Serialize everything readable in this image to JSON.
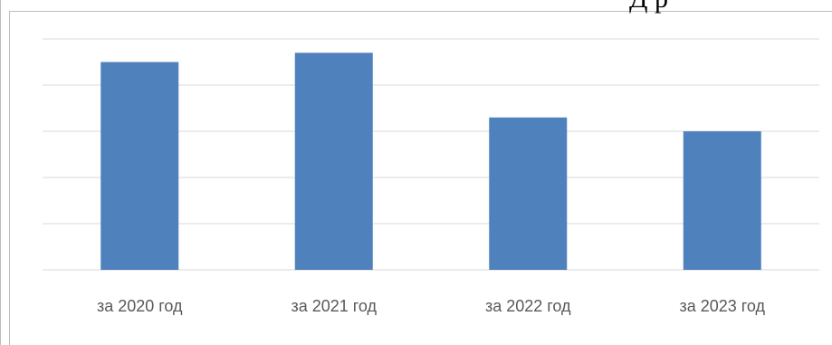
{
  "page": {
    "cropped_header_fragment": "Д р"
  },
  "chart_data": {
    "type": "bar",
    "categories": [
      "за 2020 год",
      "за 2021 год",
      "за 2022 год",
      "за 2023 год"
    ],
    "values": [
      4.5,
      4.7,
      3.3,
      3.0
    ],
    "title": "",
    "xlabel": "",
    "ylabel": "",
    "ylim": [
      0,
      5
    ],
    "grid": true,
    "legend": "none",
    "bar_color": "#4f81bd"
  }
}
